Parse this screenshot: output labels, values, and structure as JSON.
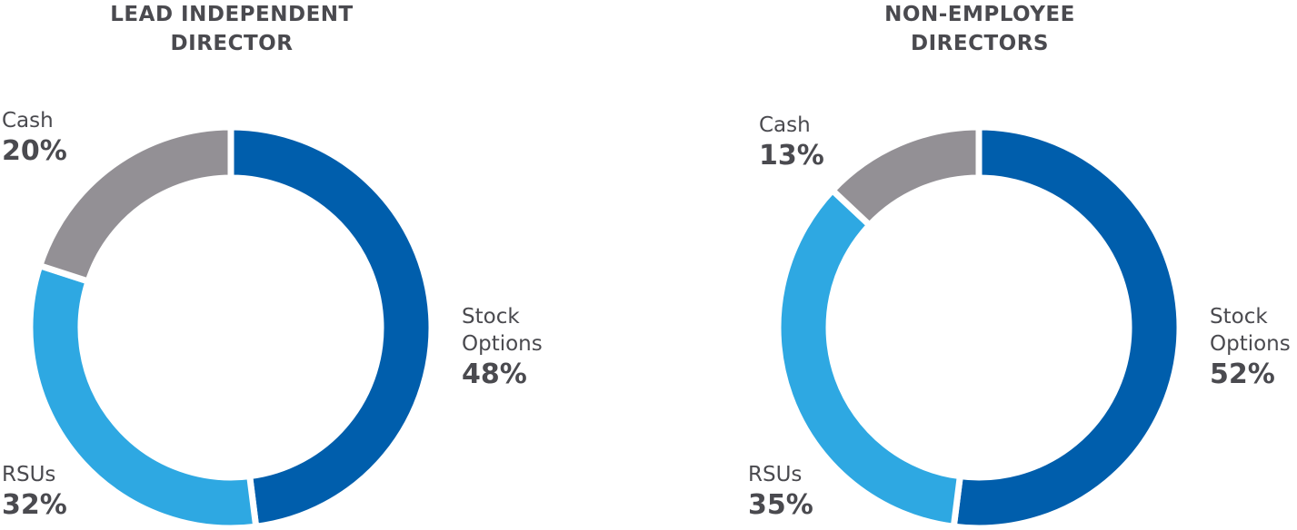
{
  "chart_data": [
    {
      "type": "pie",
      "title_lines": [
        "LEAD INDEPENDENT",
        "DIRECTOR"
      ],
      "slices": [
        {
          "name_lines": [
            "Stock",
            "Options"
          ],
          "value": 48,
          "label": "48%",
          "color": "#005eac"
        },
        {
          "name_lines": [
            "RSUs"
          ],
          "value": 32,
          "label": "32%",
          "color": "#2ea8e2"
        },
        {
          "name_lines": [
            "Cash"
          ],
          "value": 20,
          "label": "20%",
          "color": "#939095"
        }
      ]
    },
    {
      "type": "pie",
      "title_lines": [
        "NON-EMPLOYEE",
        "DIRECTORS"
      ],
      "slices": [
        {
          "name_lines": [
            "Stock",
            "Options"
          ],
          "value": 52,
          "label": "52%",
          "color": "#005eac"
        },
        {
          "name_lines": [
            "RSUs"
          ],
          "value": 35,
          "label": "35%",
          "color": "#2ea8e2"
        },
        {
          "name_lines": [
            "Cash"
          ],
          "value": 13,
          "label": "13%",
          "color": "#939095"
        }
      ]
    }
  ]
}
